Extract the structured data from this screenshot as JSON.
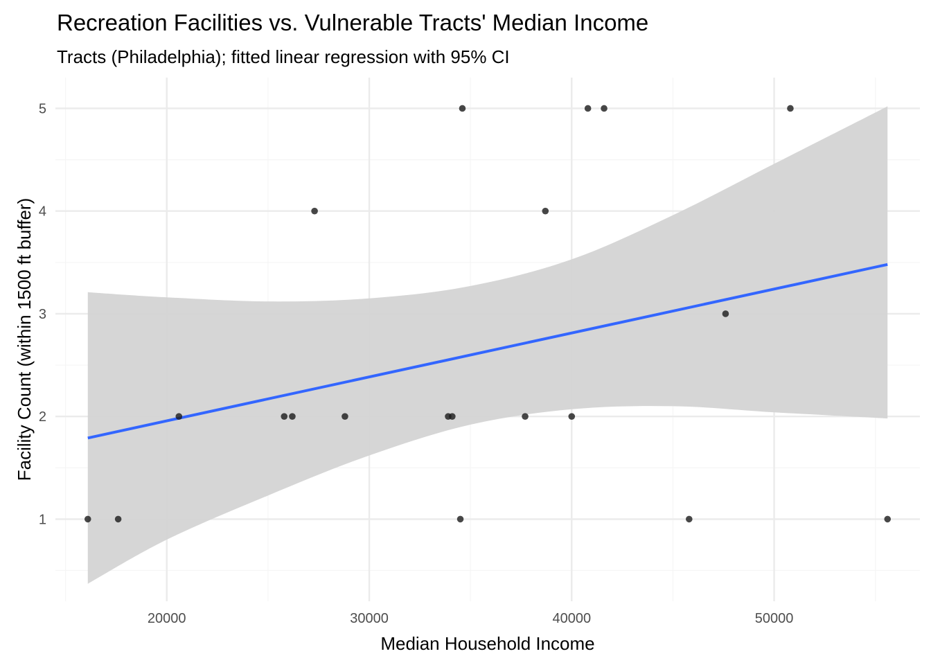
{
  "chart_data": {
    "type": "scatter",
    "title": "Recreation Facilities vs. Vulnerable Tracts' Median Income",
    "subtitle": "Tracts (Philadelphia); fitted linear regression with 95% CI",
    "xlabel": "Median Household Income",
    "ylabel": "Facility Count (within 1500 ft buffer)",
    "xlim": [
      14500,
      57200
    ],
    "ylim": [
      0.2,
      5.3
    ],
    "x_ticks": [
      20000,
      30000,
      40000,
      50000
    ],
    "x_tick_labels": [
      "20000",
      "30000",
      "40000",
      "50000"
    ],
    "y_ticks": [
      1,
      2,
      3,
      4,
      5
    ],
    "y_tick_labels": [
      "1",
      "2",
      "3",
      "4",
      "5"
    ],
    "grid": true,
    "points": [
      {
        "x": 16100,
        "y": 1
      },
      {
        "x": 17600,
        "y": 1
      },
      {
        "x": 20600,
        "y": 2
      },
      {
        "x": 25800,
        "y": 2
      },
      {
        "x": 26200,
        "y": 2
      },
      {
        "x": 27300,
        "y": 4
      },
      {
        "x": 28800,
        "y": 2
      },
      {
        "x": 33900,
        "y": 2
      },
      {
        "x": 34100,
        "y": 2
      },
      {
        "x": 34500,
        "y": 1
      },
      {
        "x": 34600,
        "y": 5
      },
      {
        "x": 37700,
        "y": 2
      },
      {
        "x": 38700,
        "y": 4
      },
      {
        "x": 40000,
        "y": 2
      },
      {
        "x": 40800,
        "y": 5
      },
      {
        "x": 41600,
        "y": 5
      },
      {
        "x": 45800,
        "y": 1
      },
      {
        "x": 47600,
        "y": 3
      },
      {
        "x": 50800,
        "y": 5
      },
      {
        "x": 55600,
        "y": 1
      }
    ],
    "regression": {
      "line": [
        [
          16100,
          1.79
        ],
        [
          55600,
          3.48
        ]
      ],
      "ci_upper": [
        [
          16100,
          3.21
        ],
        [
          20000,
          3.16
        ],
        [
          25000,
          3.12
        ],
        [
          30000,
          3.15
        ],
        [
          35000,
          3.27
        ],
        [
          40000,
          3.53
        ],
        [
          45000,
          3.96
        ],
        [
          50000,
          4.46
        ],
        [
          55600,
          5.02
        ]
      ],
      "ci_lower": [
        [
          55600,
          1.98
        ],
        [
          50000,
          2.04
        ],
        [
          45000,
          2.1
        ],
        [
          40000,
          2.07
        ],
        [
          35000,
          1.92
        ],
        [
          30000,
          1.62
        ],
        [
          25000,
          1.23
        ],
        [
          20000,
          0.8
        ],
        [
          16100,
          0.37
        ]
      ]
    },
    "colors": {
      "points": "#1a1a1a",
      "line": "#3366ff",
      "band": "#d4d4d4",
      "grid_major": "#ebebeb",
      "grid_minor": "#f5f5f5"
    }
  }
}
